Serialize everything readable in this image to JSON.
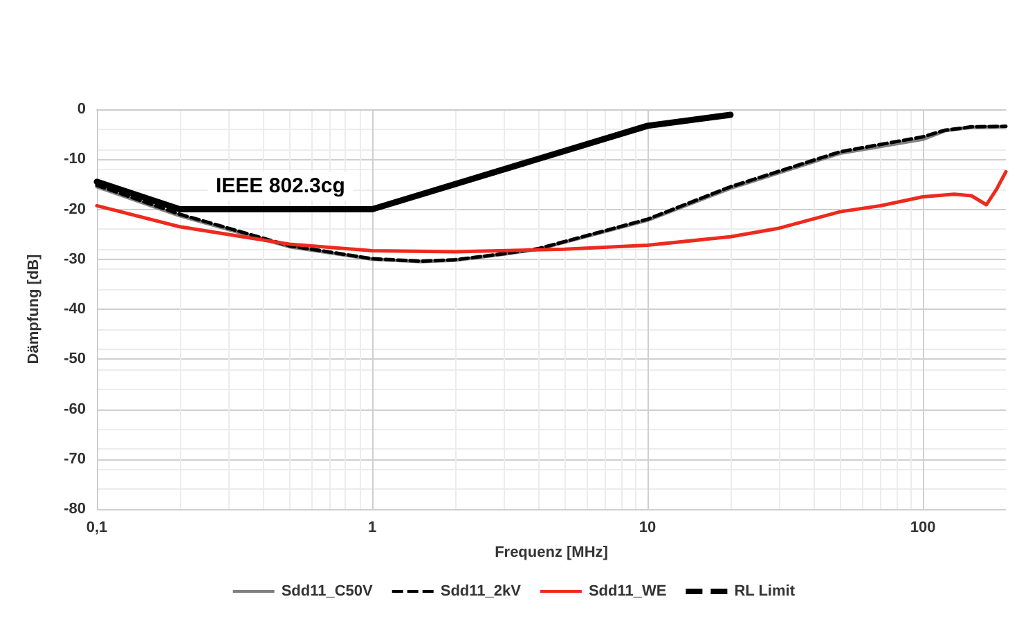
{
  "chart_data": {
    "type": "line",
    "xlabel": "Frequenz [MHz]",
    "ylabel": "Dämpfung [dB]",
    "log": "x",
    "xlim": [
      0.1,
      200
    ],
    "xticks": [
      {
        "value": 0.1,
        "label": "0,1"
      },
      1,
      10,
      100
    ],
    "ylim": [
      -80,
      0
    ],
    "yticks": [
      -80,
      -70,
      -60,
      -50,
      -40,
      -30,
      -20,
      -10,
      0
    ],
    "grid": true,
    "legend": "bottom",
    "marker": "none",
    "annotations": [
      "IEEE 802.3cg"
    ],
    "series": [
      {
        "name": "Sdd11_C50V",
        "color": "#808080",
        "line_style": "solid",
        "x": [
          0.1,
          0.2,
          0.5,
          1,
          1.5,
          2,
          3,
          4,
          10,
          20,
          50,
          100,
          120,
          150,
          200
        ],
        "values": [
          -15.5,
          -21.3,
          -27.5,
          -30,
          -30.5,
          -30.2,
          -29,
          -28,
          -22.2,
          -15.8,
          -8.8,
          -6,
          -4.3,
          -3.6,
          -3.5
        ]
      },
      {
        "name": "Sdd11_2kV",
        "color": "#000000",
        "line_style": "dashed",
        "x": [
          0.1,
          0.2,
          0.5,
          1,
          1.5,
          2,
          3,
          4,
          10,
          20,
          50,
          100,
          120,
          150,
          200
        ],
        "values": [
          -15.2,
          -21,
          -27.3,
          -29.9,
          -30.4,
          -30.1,
          -28.9,
          -27.9,
          -22,
          -15.5,
          -8.5,
          -5.5,
          -4.2,
          -3.5,
          -3.4
        ]
      },
      {
        "name": "Sdd11_WE",
        "color": "#ee2a1e",
        "line_style": "solid",
        "x": [
          0.1,
          0.2,
          0.5,
          1,
          2,
          5,
          10,
          20,
          30,
          50,
          70,
          100,
          130,
          150,
          170,
          185,
          200
        ],
        "values": [
          -19.3,
          -23.5,
          -27,
          -28.3,
          -28.5,
          -28,
          -27.2,
          -25.5,
          -23.8,
          -20.5,
          -19.3,
          -17.5,
          -17,
          -17.3,
          -19.1,
          -16,
          -12.5
        ]
      },
      {
        "name": "RL Limit",
        "color": "#000000",
        "line_style": "solid",
        "x": [
          0.1,
          0.2,
          1,
          10,
          20
        ],
        "values": [
          -14.5,
          -20,
          -20,
          -3.3,
          -1.1
        ]
      }
    ]
  }
}
